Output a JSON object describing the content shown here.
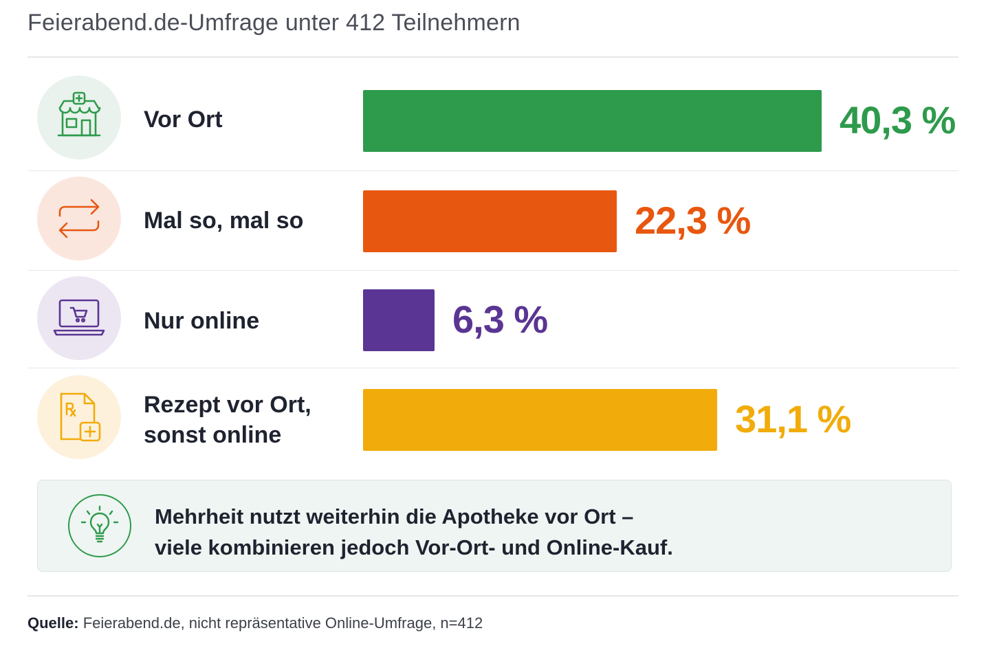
{
  "title": "Feierabend.de-Umfrage unter 412 Teilnehmern",
  "chart_data": {
    "type": "bar",
    "orientation": "horizontal",
    "title": "Feierabend.de-Umfrage unter 412 Teilnehmern",
    "xlim": [
      0,
      40.3
    ],
    "categories": [
      "Vor Ort",
      "Mal so, mal so",
      "Nur online",
      "Rezept vor Ort,\nsonst online"
    ],
    "values": [
      40.3,
      22.3,
      6.3,
      31.1
    ],
    "value_labels": [
      "40,3 %",
      "22,3 %",
      "6,3 %",
      "31,1 %"
    ],
    "colors": [
      "#2e9a4c",
      "#e8570f",
      "#5a3593",
      "#f1ac0b"
    ],
    "icon_backgrounds": [
      "#e9f2ec",
      "#fbe6de",
      "#ece6f2",
      "#fdf1dc"
    ],
    "icons": [
      "pharmacy-store-icon",
      "exchange-arrows-icon",
      "laptop-cart-icon",
      "prescription-icon"
    ],
    "grid": false,
    "legend": "none"
  },
  "note": {
    "icon": "lightbulb-icon",
    "text": "Mehrheit nutzt weiterhin die Apotheke vor Ort –\nviele kombinieren jedoch Vor-Ort- und Online-Kauf."
  },
  "source": {
    "label": "Quelle:",
    "text": "Feierabend.de, nicht repräsentative Online-Umfrage, n=412"
  }
}
